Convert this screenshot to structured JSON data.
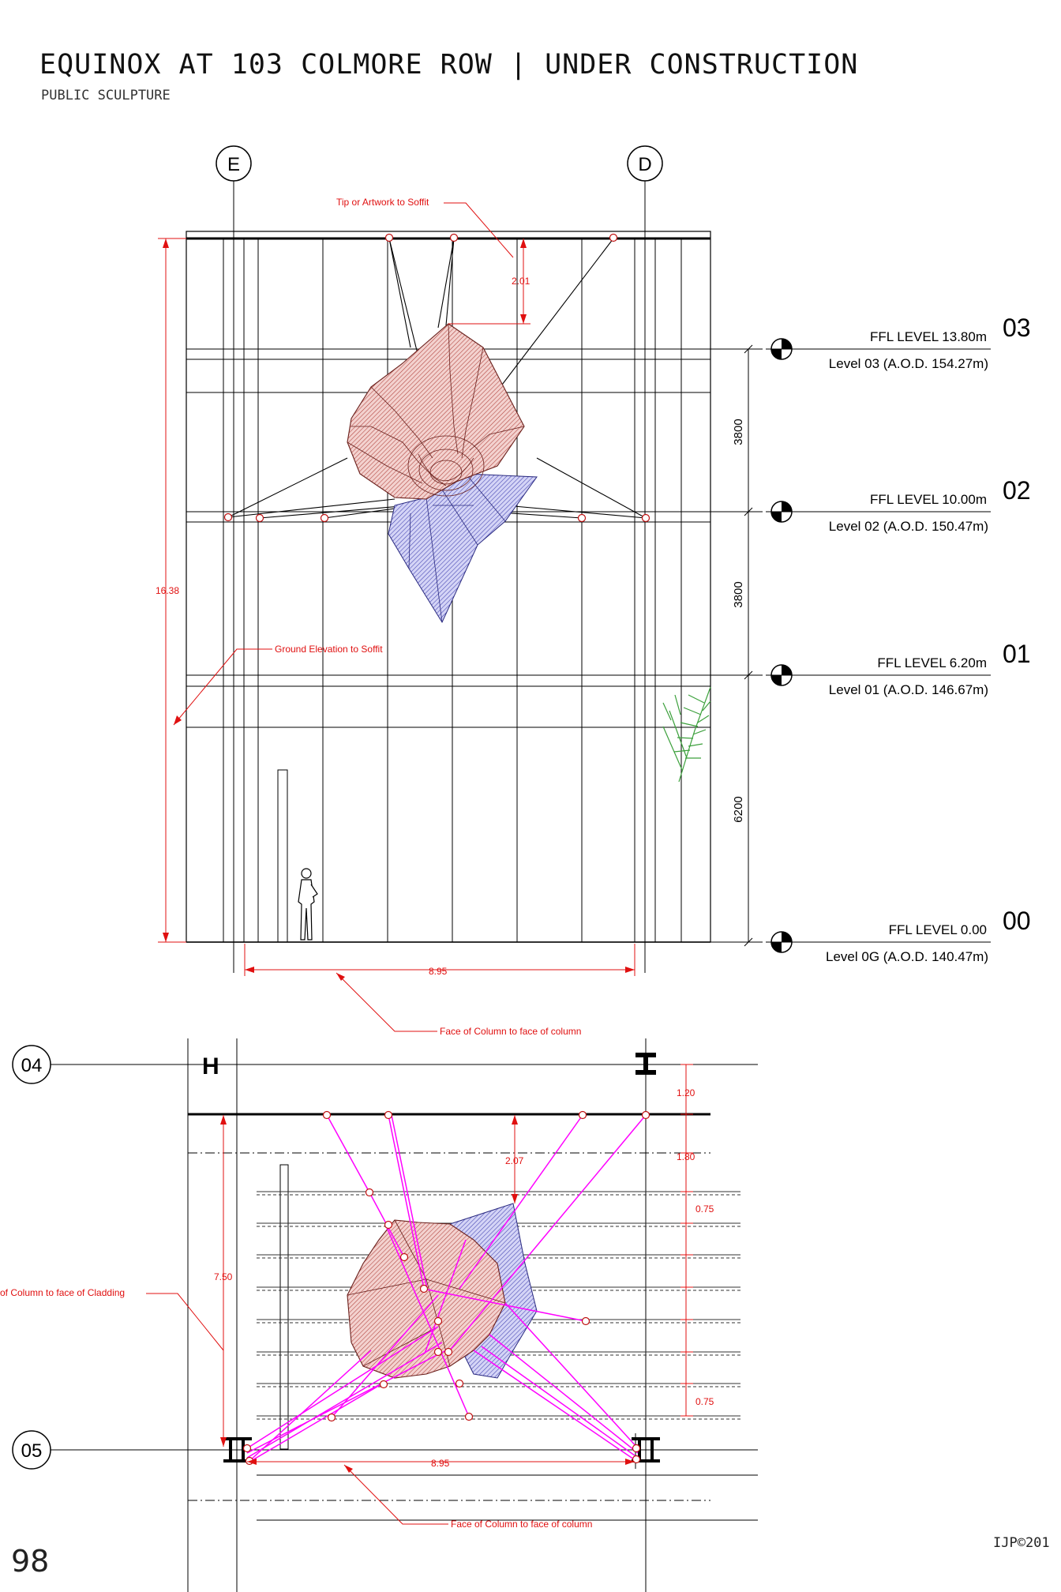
{
  "header": {
    "title": "EQUINOX AT 103 COLMORE ROW | UNDER CONSTRUCTION",
    "subtitle": "PUBLIC SCULPTURE"
  },
  "footer": {
    "page_number": "98",
    "copyright": "IJP©201"
  },
  "elevation": {
    "grid_labels": [
      "E",
      "D"
    ],
    "annotations": {
      "tip_to_soffit": "Tip or Artwork to Soffit",
      "tip_value": "2.01",
      "ground_to_soffit": "Ground Elevation to Soffit",
      "height_value": "16.38",
      "span_value": "8.95",
      "face_to_face": "Face of Column to face of column"
    },
    "vertical_dims": [
      "3800",
      "3800",
      "6200"
    ],
    "levels": [
      {
        "ffl": "FFL  LEVEL 13.80m",
        "aod": "Level 03 (A.O.D. 154.27m)",
        "num": "03"
      },
      {
        "ffl": "FFL  LEVEL 10.00m",
        "aod": "Level 02 (A.O.D. 150.47m)",
        "num": "02"
      },
      {
        "ffl": "FFL  LEVEL 6.20m",
        "aod": "Level 01 (A.O.D. 146.67m)",
        "num": "01"
      },
      {
        "ffl": "FFL  LEVEL 0.00",
        "aod": "Level 0G (A.O.D. 140.47m)",
        "num": "00"
      }
    ]
  },
  "plan": {
    "grid_labels": [
      "04",
      "05",
      "H"
    ],
    "annotations": {
      "top_offset": "1.20",
      "second_offset": "1.80",
      "tip_value": "2.07",
      "spacing_top": "0.75",
      "spacing_bottom": "0.75",
      "depth_value": "7.50",
      "cladding": "of Column to face of Cladding",
      "span_value": "8.95",
      "face_to_face": "Face of Column to face of column"
    }
  },
  "colors": {
    "annotation_red": "#e01010",
    "cable_magenta": "#ff00ff",
    "sculpture_red": "#d88a84",
    "sculpture_blue": "#8e8ee0",
    "tree_green": "#3ca03c"
  }
}
